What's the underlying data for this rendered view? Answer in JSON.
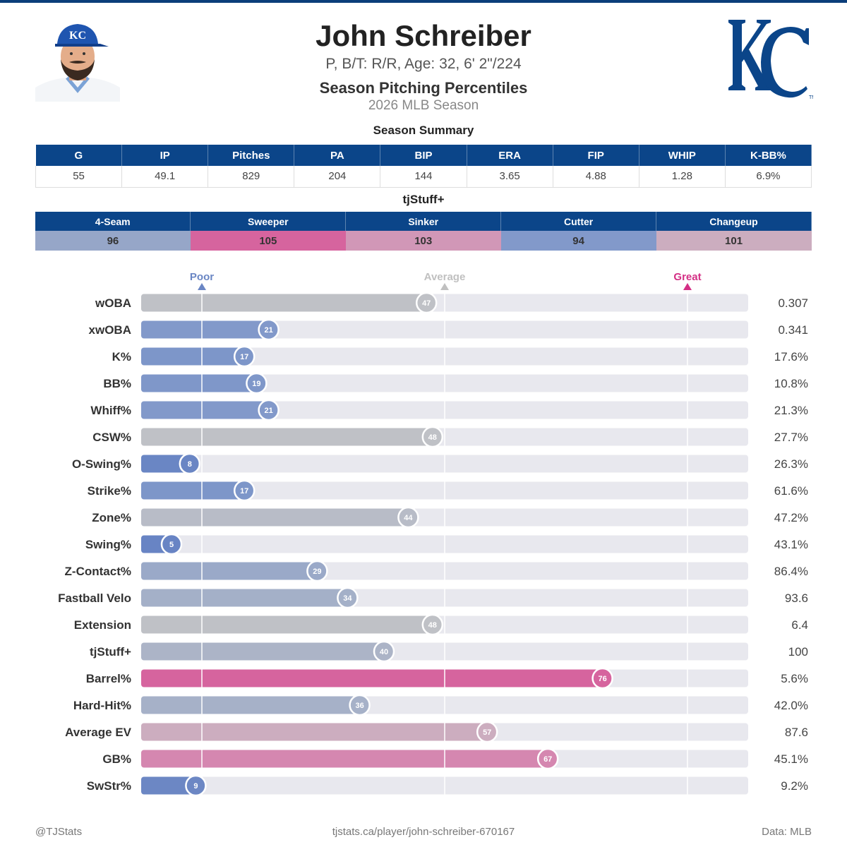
{
  "header": {
    "player_name": "John Schreiber",
    "player_info": "P, B/T: R/R, Age: 32, 6' 2\"/224",
    "report_title": "Season Pitching Percentiles",
    "season": "2026 MLB Season"
  },
  "summary": {
    "title": "Season Summary",
    "columns": [
      "G",
      "IP",
      "Pitches",
      "PA",
      "BIP",
      "ERA",
      "FIP",
      "WHIP",
      "K-BB%"
    ],
    "values": [
      "55",
      "49.1",
      "829",
      "204",
      "144",
      "3.65",
      "4.88",
      "1.28",
      "6.9%"
    ]
  },
  "tjstuff": {
    "title": "tjStuff+",
    "pitches": [
      {
        "name": "4-Seam",
        "value": "96",
        "color": "#96a6c8"
      },
      {
        "name": "Sweeper",
        "value": "105",
        "color": "#d6649e"
      },
      {
        "name": "Sinker",
        "value": "103",
        "color": "#d197b7"
      },
      {
        "name": "Cutter",
        "value": "94",
        "color": "#8299ca"
      },
      {
        "name": "Changeup",
        "value": "101",
        "color": "#ccadbf"
      }
    ]
  },
  "chart_data": {
    "type": "bar",
    "orientation": "horizontal",
    "xlim": [
      0,
      100
    ],
    "reference_markers": [
      {
        "label": "Poor",
        "value": 10,
        "color": "#6a86c4"
      },
      {
        "label": "Average",
        "value": 50,
        "color": "#c0c0c0"
      },
      {
        "label": "Great",
        "value": 90,
        "color": "#d42f85"
      }
    ],
    "categories": [
      "wOBA",
      "xwOBA",
      "K%",
      "BB%",
      "Whiff%",
      "CSW%",
      "O-Swing%",
      "Strike%",
      "Zone%",
      "Swing%",
      "Z-Contact%",
      "Fastball Velo",
      "Extension",
      "tjStuff+",
      "Barrel%",
      "Hard-Hit%",
      "Average EV",
      "GB%",
      "SwStr%"
    ],
    "percentiles": [
      47,
      21,
      17,
      19,
      21,
      48,
      8,
      17,
      44,
      5,
      29,
      34,
      48,
      40,
      76,
      36,
      57,
      67,
      9
    ],
    "values": [
      "0.307",
      "0.341",
      "17.6%",
      "10.8%",
      "21.3%",
      "27.7%",
      "26.3%",
      "61.6%",
      "47.2%",
      "43.1%",
      "86.4%",
      "93.6",
      "6.4",
      "100",
      "5.6%",
      "42.0%",
      "87.6",
      "45.1%",
      "9.2%"
    ],
    "colors": [
      "#bfc1c6",
      "#8299ca",
      "#7d96c9",
      "#7f97c9",
      "#8299ca",
      "#bfc1c6",
      "#6a86c4",
      "#7d96c9",
      "#b8bcc7",
      "#6884c4",
      "#9aa9c8",
      "#a4b0c8",
      "#bfc1c6",
      "#acb4c7",
      "#d6649e",
      "#a6b1c8",
      "#ccadbf",
      "#d587b0",
      "#6c87c4"
    ]
  },
  "footer": {
    "left": "@TJStats",
    "center": "tjstats.ca/player/john-schreiber-670167",
    "right": "Data: MLB"
  }
}
